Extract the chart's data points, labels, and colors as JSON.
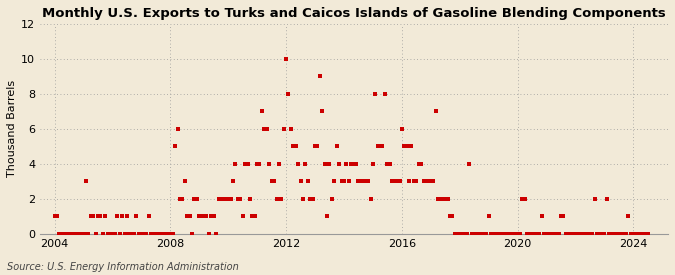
{
  "title": "Monthly U.S. Exports to Turks and Caicos Islands of Gasoline Blending Components",
  "ylabel": "Thousand Barrels",
  "source": "Source: U.S. Energy Information Administration",
  "background_color": "#f2ead8",
  "dot_color": "#cc0000",
  "ylim": [
    0,
    12
  ],
  "yticks": [
    0,
    2,
    4,
    6,
    8,
    10,
    12
  ],
  "xlim_start": 2003.5,
  "xlim_end": 2025.2,
  "xticks": [
    2004,
    2008,
    2012,
    2016,
    2020,
    2024
  ],
  "data_points": [
    [
      2004.0,
      1
    ],
    [
      2004.08,
      1
    ],
    [
      2004.17,
      0
    ],
    [
      2004.25,
      0
    ],
    [
      2004.33,
      0
    ],
    [
      2004.42,
      0
    ],
    [
      2004.5,
      0
    ],
    [
      2004.58,
      0
    ],
    [
      2004.67,
      0
    ],
    [
      2004.75,
      0
    ],
    [
      2004.83,
      0
    ],
    [
      2004.92,
      0
    ],
    [
      2005.0,
      0
    ],
    [
      2005.08,
      3
    ],
    [
      2005.17,
      0
    ],
    [
      2005.25,
      1
    ],
    [
      2005.33,
      1
    ],
    [
      2005.42,
      0
    ],
    [
      2005.5,
      1
    ],
    [
      2005.58,
      1
    ],
    [
      2005.67,
      0
    ],
    [
      2005.75,
      1
    ],
    [
      2005.83,
      0
    ],
    [
      2005.92,
      0
    ],
    [
      2006.0,
      0
    ],
    [
      2006.08,
      0
    ],
    [
      2006.17,
      1
    ],
    [
      2006.25,
      0
    ],
    [
      2006.33,
      1
    ],
    [
      2006.42,
      0
    ],
    [
      2006.5,
      1
    ],
    [
      2006.58,
      0
    ],
    [
      2006.67,
      0
    ],
    [
      2006.75,
      0
    ],
    [
      2006.83,
      1
    ],
    [
      2006.92,
      0
    ],
    [
      2007.0,
      0
    ],
    [
      2007.08,
      0
    ],
    [
      2007.17,
      0
    ],
    [
      2007.25,
      1
    ],
    [
      2007.33,
      0
    ],
    [
      2007.42,
      0
    ],
    [
      2007.5,
      0
    ],
    [
      2007.58,
      0
    ],
    [
      2007.67,
      0
    ],
    [
      2007.75,
      0
    ],
    [
      2007.83,
      0
    ],
    [
      2007.92,
      0
    ],
    [
      2008.0,
      0
    ],
    [
      2008.08,
      0
    ],
    [
      2008.17,
      5
    ],
    [
      2008.25,
      6
    ],
    [
      2008.33,
      2
    ],
    [
      2008.42,
      2
    ],
    [
      2008.5,
      3
    ],
    [
      2008.58,
      1
    ],
    [
      2008.67,
      1
    ],
    [
      2008.75,
      0
    ],
    [
      2008.83,
      2
    ],
    [
      2008.92,
      2
    ],
    [
      2009.0,
      1
    ],
    [
      2009.08,
      1
    ],
    [
      2009.17,
      1
    ],
    [
      2009.25,
      1
    ],
    [
      2009.33,
      0
    ],
    [
      2009.42,
      1
    ],
    [
      2009.5,
      1
    ],
    [
      2009.58,
      0
    ],
    [
      2009.67,
      2
    ],
    [
      2009.75,
      2
    ],
    [
      2009.83,
      2
    ],
    [
      2009.92,
      2
    ],
    [
      2010.0,
      2
    ],
    [
      2010.08,
      2
    ],
    [
      2010.17,
      3
    ],
    [
      2010.25,
      4
    ],
    [
      2010.33,
      2
    ],
    [
      2010.42,
      2
    ],
    [
      2010.5,
      1
    ],
    [
      2010.58,
      4
    ],
    [
      2010.67,
      4
    ],
    [
      2010.75,
      2
    ],
    [
      2010.83,
      1
    ],
    [
      2010.92,
      1
    ],
    [
      2011.0,
      4
    ],
    [
      2011.08,
      4
    ],
    [
      2011.17,
      7
    ],
    [
      2011.25,
      6
    ],
    [
      2011.33,
      6
    ],
    [
      2011.42,
      4
    ],
    [
      2011.5,
      3
    ],
    [
      2011.58,
      3
    ],
    [
      2011.67,
      2
    ],
    [
      2011.75,
      4
    ],
    [
      2011.83,
      2
    ],
    [
      2011.92,
      6
    ],
    [
      2012.0,
      10
    ],
    [
      2012.08,
      8
    ],
    [
      2012.17,
      6
    ],
    [
      2012.25,
      5
    ],
    [
      2012.33,
      5
    ],
    [
      2012.42,
      4
    ],
    [
      2012.5,
      3
    ],
    [
      2012.58,
      2
    ],
    [
      2012.67,
      4
    ],
    [
      2012.75,
      3
    ],
    [
      2012.83,
      2
    ],
    [
      2012.92,
      2
    ],
    [
      2013.0,
      5
    ],
    [
      2013.08,
      5
    ],
    [
      2013.17,
      9
    ],
    [
      2013.25,
      7
    ],
    [
      2013.33,
      4
    ],
    [
      2013.42,
      1
    ],
    [
      2013.5,
      4
    ],
    [
      2013.58,
      2
    ],
    [
      2013.67,
      3
    ],
    [
      2013.75,
      5
    ],
    [
      2013.83,
      4
    ],
    [
      2013.92,
      3
    ],
    [
      2014.0,
      3
    ],
    [
      2014.08,
      4
    ],
    [
      2014.17,
      3
    ],
    [
      2014.25,
      4
    ],
    [
      2014.33,
      4
    ],
    [
      2014.42,
      4
    ],
    [
      2014.5,
      3
    ],
    [
      2014.58,
      3
    ],
    [
      2014.67,
      3
    ],
    [
      2014.75,
      3
    ],
    [
      2014.83,
      3
    ],
    [
      2014.92,
      2
    ],
    [
      2015.0,
      4
    ],
    [
      2015.08,
      8
    ],
    [
      2015.17,
      5
    ],
    [
      2015.25,
      5
    ],
    [
      2015.33,
      5
    ],
    [
      2015.42,
      8
    ],
    [
      2015.5,
      4
    ],
    [
      2015.58,
      4
    ],
    [
      2015.67,
      3
    ],
    [
      2015.75,
      3
    ],
    [
      2015.83,
      3
    ],
    [
      2015.92,
      3
    ],
    [
      2016.0,
      6
    ],
    [
      2016.08,
      5
    ],
    [
      2016.17,
      5
    ],
    [
      2016.25,
      3
    ],
    [
      2016.33,
      5
    ],
    [
      2016.42,
      3
    ],
    [
      2016.5,
      3
    ],
    [
      2016.58,
      4
    ],
    [
      2016.67,
      4
    ],
    [
      2016.75,
      3
    ],
    [
      2016.83,
      3
    ],
    [
      2016.92,
      3
    ],
    [
      2017.0,
      3
    ],
    [
      2017.08,
      3
    ],
    [
      2017.17,
      7
    ],
    [
      2017.25,
      2
    ],
    [
      2017.33,
      2
    ],
    [
      2017.42,
      2
    ],
    [
      2017.5,
      2
    ],
    [
      2017.58,
      2
    ],
    [
      2017.67,
      1
    ],
    [
      2017.75,
      1
    ],
    [
      2017.83,
      0
    ],
    [
      2017.92,
      0
    ],
    [
      2018.0,
      0
    ],
    [
      2018.08,
      0
    ],
    [
      2018.17,
      0
    ],
    [
      2018.25,
      0
    ],
    [
      2018.33,
      4
    ],
    [
      2018.42,
      0
    ],
    [
      2018.5,
      0
    ],
    [
      2018.58,
      0
    ],
    [
      2018.67,
      0
    ],
    [
      2018.75,
      0
    ],
    [
      2018.83,
      0
    ],
    [
      2018.92,
      0
    ],
    [
      2019.0,
      1
    ],
    [
      2019.08,
      0
    ],
    [
      2019.17,
      0
    ],
    [
      2019.25,
      0
    ],
    [
      2019.33,
      0
    ],
    [
      2019.42,
      0
    ],
    [
      2019.5,
      0
    ],
    [
      2019.58,
      0
    ],
    [
      2019.67,
      0
    ],
    [
      2019.75,
      0
    ],
    [
      2019.83,
      0
    ],
    [
      2019.92,
      0
    ],
    [
      2020.0,
      0
    ],
    [
      2020.08,
      0
    ],
    [
      2020.17,
      2
    ],
    [
      2020.25,
      2
    ],
    [
      2020.33,
      0
    ],
    [
      2020.42,
      0
    ],
    [
      2020.5,
      0
    ],
    [
      2020.58,
      0
    ],
    [
      2020.67,
      0
    ],
    [
      2020.75,
      0
    ],
    [
      2020.83,
      1
    ],
    [
      2020.92,
      0
    ],
    [
      2021.0,
      0
    ],
    [
      2021.08,
      0
    ],
    [
      2021.17,
      0
    ],
    [
      2021.25,
      0
    ],
    [
      2021.33,
      0
    ],
    [
      2021.42,
      0
    ],
    [
      2021.5,
      1
    ],
    [
      2021.58,
      1
    ],
    [
      2021.67,
      0
    ],
    [
      2021.75,
      0
    ],
    [
      2021.83,
      0
    ],
    [
      2021.92,
      0
    ],
    [
      2022.0,
      0
    ],
    [
      2022.08,
      0
    ],
    [
      2022.17,
      0
    ],
    [
      2022.25,
      0
    ],
    [
      2022.33,
      0
    ],
    [
      2022.42,
      0
    ],
    [
      2022.5,
      0
    ],
    [
      2022.58,
      0
    ],
    [
      2022.67,
      2
    ],
    [
      2022.75,
      0
    ],
    [
      2022.83,
      0
    ],
    [
      2022.92,
      0
    ],
    [
      2023.0,
      0
    ],
    [
      2023.08,
      2
    ],
    [
      2023.17,
      0
    ],
    [
      2023.25,
      0
    ],
    [
      2023.33,
      0
    ],
    [
      2023.42,
      0
    ],
    [
      2023.5,
      0
    ],
    [
      2023.58,
      0
    ],
    [
      2023.67,
      0
    ],
    [
      2023.75,
      0
    ],
    [
      2023.83,
      1
    ],
    [
      2023.92,
      0
    ],
    [
      2024.0,
      0
    ],
    [
      2024.08,
      0
    ],
    [
      2024.17,
      0
    ],
    [
      2024.25,
      0
    ],
    [
      2024.33,
      0
    ],
    [
      2024.42,
      0
    ],
    [
      2024.5,
      0
    ]
  ]
}
